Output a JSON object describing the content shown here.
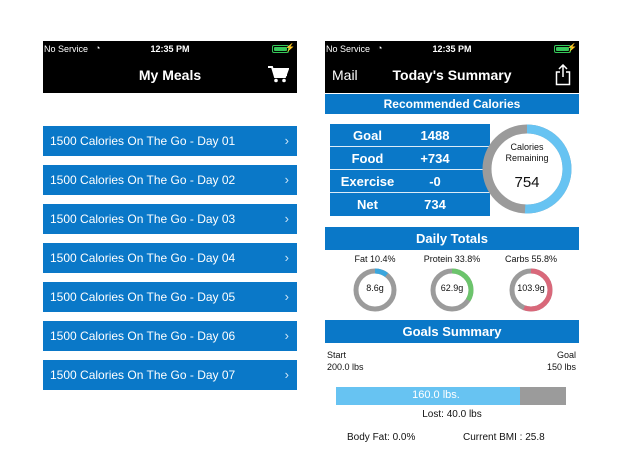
{
  "left": {
    "status": {
      "carrier": "No Service",
      "time": "12:35 PM"
    },
    "title": "My Meals",
    "meals": [
      "1500 Calories On The Go - Day 01",
      "1500 Calories On The Go - Day 02",
      "1500 Calories On The Go - Day 03",
      "1500 Calories On The Go - Day 04",
      "1500 Calories On The Go - Day 05",
      "1500 Calories On The Go - Day 06",
      "1500 Calories On The Go - Day 07"
    ]
  },
  "right": {
    "status": {
      "carrier": "No Service",
      "time": "12:35 PM"
    },
    "back_label": "Mail",
    "title": "Today's Summary",
    "recommended_title": "Recommended Calories",
    "calories": [
      {
        "label": "Goal",
        "value": "1488"
      },
      {
        "label": "Food",
        "value": "+734"
      },
      {
        "label": "Exercise",
        "value": "-0"
      },
      {
        "label": "Net",
        "value": "734"
      }
    ],
    "remaining": {
      "line1": "Calories",
      "line2": "Remaining",
      "value": "754",
      "fraction": 0.507
    },
    "daily_title": "Daily Totals",
    "macros": [
      {
        "label": "Fat 10.4%",
        "grams": "8.6g",
        "fraction": 0.104,
        "color": "#3aa6dd"
      },
      {
        "label": "Protein 33.8%",
        "grams": "62.9g",
        "fraction": 0.338,
        "color": "#6cc46c"
      },
      {
        "label": "Carbs 55.8%",
        "grams": "103.9g",
        "fraction": 0.558,
        "color": "#d9687a"
      }
    ],
    "goals_title": "Goals Summary",
    "goals": {
      "start_label": "Start",
      "start_value": "200.0 lbs",
      "goal_label": "Goal",
      "goal_value": "150 lbs",
      "current": "160.0 lbs.",
      "progress_fraction": 0.8,
      "lost": "Lost:  40.0 lbs",
      "body_fat": "Body Fat:  0.0%",
      "bmi": "Current BMI : 25.8"
    }
  },
  "colors": {
    "accent": "#0a78c8",
    "ring": "#67c3f2",
    "track": "#9b9b9b",
    "battery": "#35c759"
  }
}
